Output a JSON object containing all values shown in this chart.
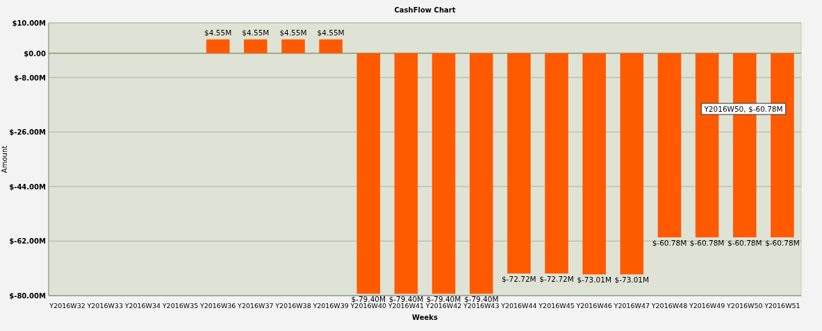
{
  "chart_data": {
    "type": "bar",
    "title": "CashFlow Chart",
    "xlabel": "Weeks",
    "ylabel": "Amount",
    "categories": [
      "Y2016W32",
      "Y2016W33",
      "Y2016W34",
      "Y2016W35",
      "Y2016W36",
      "Y2016W37",
      "Y2016W38",
      "Y2016W39",
      "Y2016W40",
      "Y2016W41",
      "Y2016W42",
      "Y2016W43",
      "Y2016W44",
      "Y2016W45",
      "Y2016W46",
      "Y2016W47",
      "Y2016W48",
      "Y2016W49",
      "Y2016W50",
      "Y2016W51"
    ],
    "values": [
      null,
      null,
      null,
      null,
      4.55,
      4.55,
      4.55,
      4.55,
      -79.4,
      -79.4,
      -79.4,
      -79.4,
      -72.72,
      -72.72,
      -73.01,
      -73.01,
      -60.78,
      -60.78,
      -60.78,
      -60.78
    ],
    "value_labels": [
      null,
      null,
      null,
      null,
      "$4.55M",
      "$4.55M",
      "$4.55M",
      "$4.55M",
      "$-79.40M",
      "$-79.40M",
      "$-79.40M",
      "$-79.40M",
      "$-72.72M",
      "$-72.72M",
      "$-73.01M",
      "$-73.01M",
      "$-60.78M",
      "$-60.78M",
      "$-60.78M",
      "$-60.78M"
    ],
    "color": "#ff5a00",
    "ylim": [
      -80,
      10
    ],
    "yticks": [
      {
        "value": 10,
        "label": "$10.00M"
      },
      {
        "value": 0,
        "label": "$0.00"
      },
      {
        "value": -8,
        "label": "$-8.00M"
      },
      {
        "value": -26,
        "label": "$-26.00M"
      },
      {
        "value": -44,
        "label": "$-44.00M"
      },
      {
        "value": -62,
        "label": "$-62.00M"
      },
      {
        "value": -80,
        "label": "$-80.00M"
      }
    ],
    "grid": "y",
    "annotations": [
      "Y2016W50, $-60.78M"
    ]
  }
}
